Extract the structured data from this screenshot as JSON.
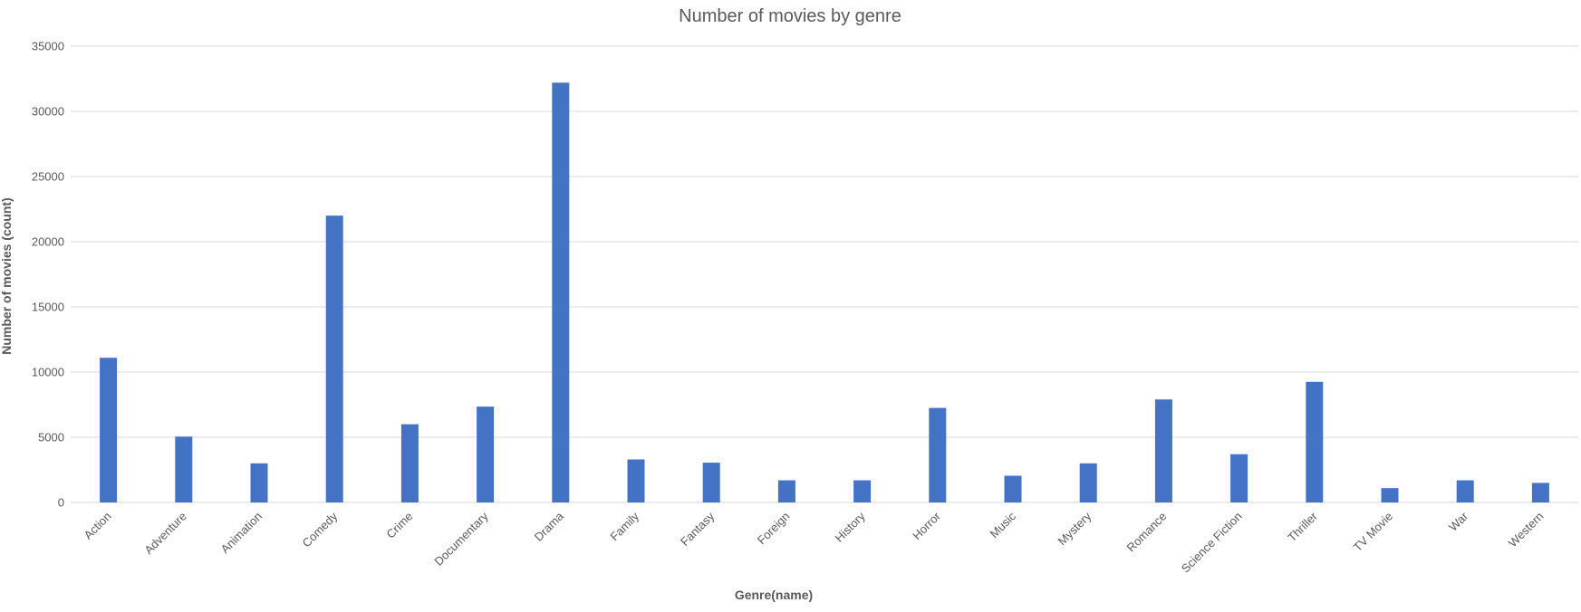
{
  "chart_data": {
    "type": "bar",
    "title": "Number of movies by genre",
    "xlabel": "Genre(name)",
    "ylabel": "Number of movies (count)",
    "ylim": [
      0,
      35000
    ],
    "yticks": [
      0,
      5000,
      10000,
      15000,
      20000,
      25000,
      30000,
      35000
    ],
    "grid": true,
    "legend": "none",
    "bar_color": "#4472c4",
    "categories": [
      "Action",
      "Adventure",
      "Animation",
      "Comedy",
      "Crime",
      "Documentary",
      "Drama",
      "Family",
      "Fantasy",
      "Foreign",
      "History",
      "Horror",
      "Music",
      "Mystery",
      "Romance",
      "Science Fiction",
      "Thriller",
      "TV Movie",
      "War",
      "Western"
    ],
    "values": [
      11100,
      5050,
      3000,
      22000,
      6000,
      7350,
      32200,
      3300,
      3050,
      1700,
      1700,
      7250,
      2050,
      3000,
      7900,
      3700,
      9250,
      1100,
      1700,
      1500
    ]
  }
}
